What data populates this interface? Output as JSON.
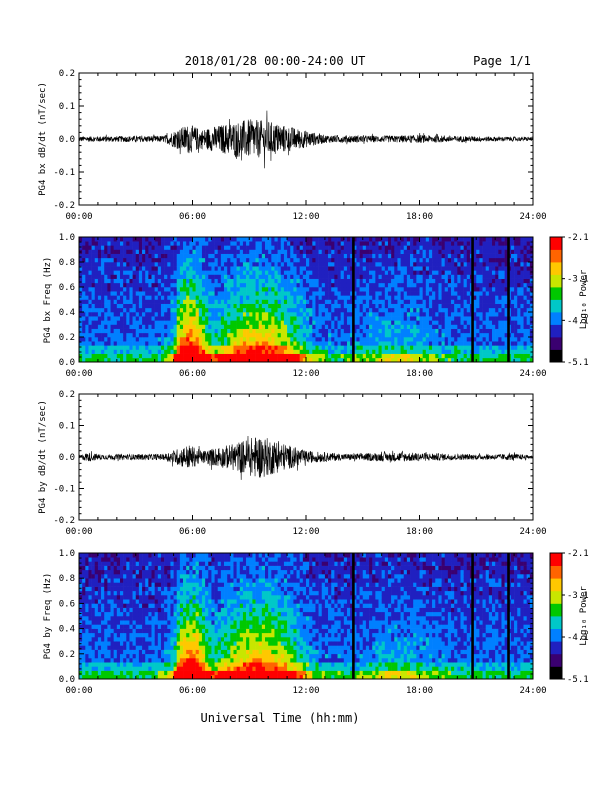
{
  "header": {
    "title": "2018/01/28  00:00-24:00 UT",
    "page": "Page 1/1"
  },
  "footer": {
    "xlabel": "Universal Time (hh:mm)"
  },
  "colorbar": {
    "title": "Log₁₀ Power",
    "ticks": [
      "-2.1",
      "-3.1",
      "-4.1",
      "-5.1"
    ],
    "colors": [
      "#000000",
      "#3a0070",
      "#2020c0",
      "#0080ff",
      "#00c8c8",
      "#00c800",
      "#c8e600",
      "#ffc800",
      "#ff6400",
      "#ff0000"
    ]
  },
  "chart_data": [
    {
      "type": "line",
      "ylabel": "PG4 bx dB/dt (nT/sec)",
      "x_ticks": [
        "00:00",
        "06:00",
        "12:00",
        "18:00",
        "24:00"
      ],
      "y_ticks": [
        "0.2",
        "0.1",
        "0.0",
        "-0.1",
        "-0.2"
      ],
      "xlim": [
        0,
        24
      ],
      "ylim": [
        -0.2,
        0.2
      ],
      "envelope": [
        {
          "x": 0,
          "amp": 0.008
        },
        {
          "x": 4.5,
          "amp": 0.01
        },
        {
          "x": 5,
          "amp": 0.025
        },
        {
          "x": 5.8,
          "amp": 0.045
        },
        {
          "x": 6.5,
          "amp": 0.03
        },
        {
          "x": 8,
          "amp": 0.05
        },
        {
          "x": 9,
          "amp": 0.06
        },
        {
          "x": 10,
          "amp": 0.055
        },
        {
          "x": 11,
          "amp": 0.04
        },
        {
          "x": 13,
          "amp": 0.012
        },
        {
          "x": 16,
          "amp": 0.01
        },
        {
          "x": 18,
          "amp": 0.012
        },
        {
          "x": 21,
          "amp": 0.008
        },
        {
          "x": 24,
          "amp": 0.006
        }
      ]
    },
    {
      "type": "heatmap",
      "ylabel": "PG4 bx Freq (Hz)",
      "x_ticks": [
        "00:00",
        "06:00",
        "12:00",
        "18:00",
        "24:00"
      ],
      "y_ticks": [
        "1.0",
        "0.8",
        "0.6",
        "0.4",
        "0.2",
        "0.0"
      ],
      "xlim": [
        0,
        24
      ],
      "ylim": [
        0,
        1.0
      ],
      "zlim": [
        -5.1,
        -2.1
      ],
      "data_gaps_hours": [
        14.5,
        20.8,
        22.7
      ]
    },
    {
      "type": "line",
      "ylabel": "PG4 by dB/dt (nT/sec)",
      "x_ticks": [
        "00:00",
        "06:00",
        "12:00",
        "18:00",
        "24:00"
      ],
      "y_ticks": [
        "0.2",
        "0.1",
        "0.0",
        "-0.1",
        "-0.2"
      ],
      "xlim": [
        0,
        24
      ],
      "ylim": [
        -0.2,
        0.2
      ],
      "envelope": [
        {
          "x": 0,
          "amp": 0.006
        },
        {
          "x": 0.5,
          "amp": 0.015
        },
        {
          "x": 1.2,
          "amp": 0.008
        },
        {
          "x": 4.5,
          "amp": 0.01
        },
        {
          "x": 5.8,
          "amp": 0.04
        },
        {
          "x": 6.5,
          "amp": 0.02
        },
        {
          "x": 8,
          "amp": 0.04
        },
        {
          "x": 9.5,
          "amp": 0.07
        },
        {
          "x": 10.5,
          "amp": 0.05
        },
        {
          "x": 12,
          "amp": 0.02
        },
        {
          "x": 14,
          "amp": 0.01
        },
        {
          "x": 17,
          "amp": 0.015
        },
        {
          "x": 21,
          "amp": 0.008
        },
        {
          "x": 23,
          "amp": 0.01
        },
        {
          "x": 24,
          "amp": 0.005
        }
      ]
    },
    {
      "type": "heatmap",
      "ylabel": "PG4 by Freq (Hz)",
      "x_ticks": [
        "00:00",
        "06:00",
        "12:00",
        "18:00",
        "24:00"
      ],
      "y_ticks": [
        "1.0",
        "0.8",
        "0.6",
        "0.4",
        "0.2",
        "0.0"
      ],
      "xlim": [
        0,
        24
      ],
      "ylim": [
        0,
        1.0
      ],
      "zlim": [
        -5.1,
        -2.1
      ],
      "data_gaps_hours": [
        14.5,
        20.8,
        22.7
      ]
    }
  ]
}
